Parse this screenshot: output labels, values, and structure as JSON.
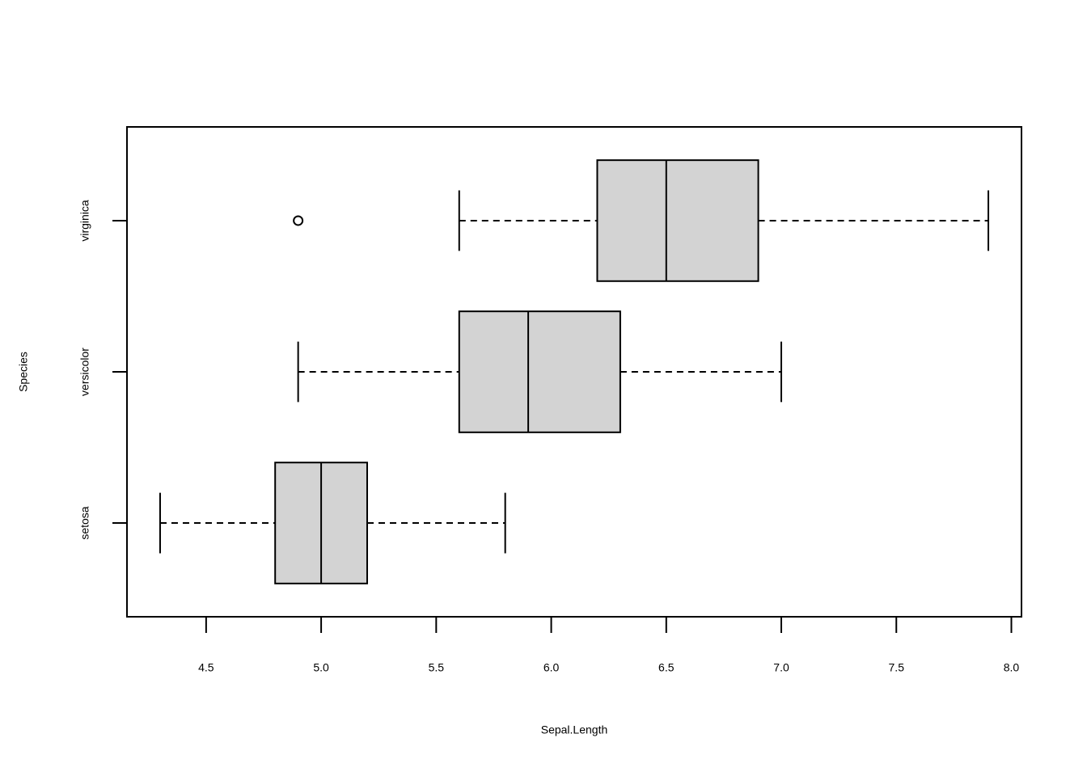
{
  "chart_data": {
    "type": "boxplot",
    "horizontal": true,
    "x_label": "Sepal.Length",
    "y_label": "Species",
    "categories": [
      "setosa",
      "versicolor",
      "virginica"
    ],
    "boxes": [
      {
        "min": 4.3,
        "q1": 4.8,
        "median": 5.0,
        "q3": 5.2,
        "max": 5.8,
        "outliers": []
      },
      {
        "min": 4.9,
        "q1": 5.6,
        "median": 5.9,
        "q3": 6.3,
        "max": 7.0,
        "outliers": []
      },
      {
        "min": 5.6,
        "q1": 6.2,
        "median": 6.5,
        "q3": 6.9,
        "max": 7.9,
        "outliers": [
          4.9
        ]
      }
    ],
    "color": "#d3d3d3",
    "xlim": [
      4.156,
      8.044
    ],
    "xticks": [
      4.5,
      {
        "value": 5,
        "label": "5.0"
      },
      5.5,
      {
        "value": 6,
        "label": "6.0"
      },
      6.5,
      {
        "value": 7,
        "label": "7.0"
      },
      7.5,
      {
        "value": 8,
        "label": "8.0"
      }
    ]
  }
}
